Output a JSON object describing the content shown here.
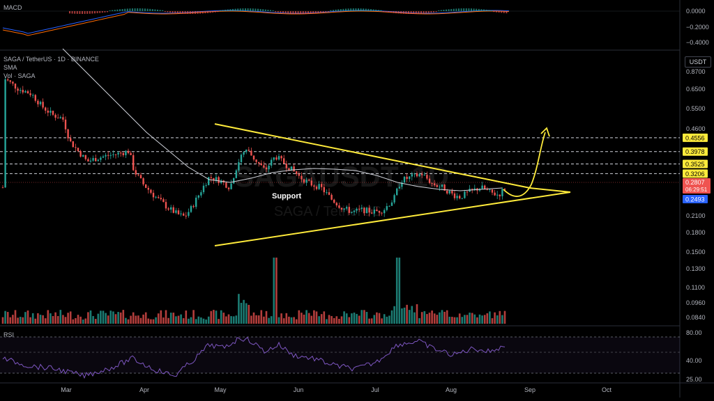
{
  "chart_data": {
    "type": "candlestick",
    "title": "SAGA / TetherUS · 1D · BINANCE",
    "indicators": {
      "sma": "SMA",
      "volume": "Vol · SAGA",
      "macd": "MACD",
      "rsi": "RSI"
    },
    "currency_label": "USDT",
    "watermark": {
      "symbol": "SAGAUSDT, 1D",
      "pair": "SAGA / TetherUS"
    },
    "y_axis_scale": "log",
    "y_ticks": [
      "0.8700",
      "0.6500",
      "0.5500",
      "0.4600",
      "0.2800",
      "0.2490",
      "0.2100",
      "0.1800",
      "0.1500",
      "0.1300",
      "0.1100",
      "0.0960",
      "0.0840"
    ],
    "y_tick_values": [
      0.87,
      0.65,
      0.55,
      0.46,
      0.28,
      0.249,
      0.21,
      0.18,
      0.15,
      0.13,
      0.11,
      0.096,
      0.084
    ],
    "macd_ticks": [
      "0.0000",
      "−0.2000",
      "−0.4000"
    ],
    "rsi_ticks": [
      "80.00",
      "40.00",
      "25.00"
    ],
    "x_ticks": [
      "Mar",
      "Apr",
      "May",
      "Jun",
      "Jul",
      "Aug",
      "Sep",
      "Oct"
    ],
    "horizontal_levels": [
      {
        "label": "0.4556",
        "value": 0.4556
      },
      {
        "label": "0.3978",
        "value": 0.3978
      },
      {
        "label": "0.3525",
        "value": 0.3525
      },
      {
        "label": "0.3206",
        "value": 0.3206
      }
    ],
    "current_price": {
      "label": "0.2807",
      "countdown": "06:29:51"
    },
    "support_price": {
      "label": "0.2493"
    },
    "annotations": {
      "support_text": "Support"
    },
    "colors": {
      "up": "#26a69a",
      "down": "#ef5350",
      "sma": "#d1d4dc",
      "levels": "#ffeb3b",
      "trendlines": "#ffeb3b",
      "macd": "#2962ff",
      "signal": "#ff6d00",
      "rsi": "#7e57c2",
      "volume_up": "#26a69a",
      "volume_down": "#ef5350"
    }
  }
}
